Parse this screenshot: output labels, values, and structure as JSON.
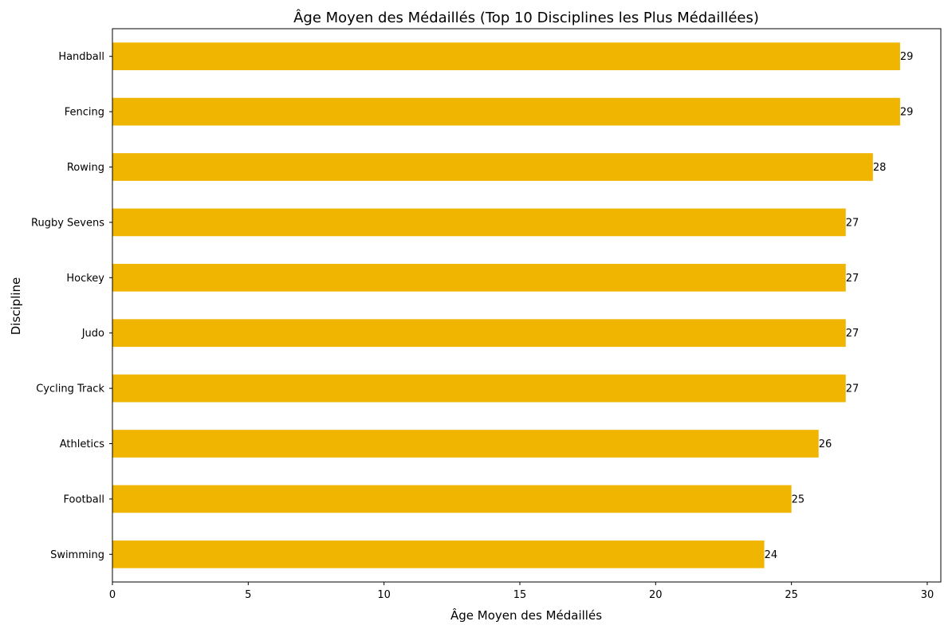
{
  "chart_data": {
    "type": "bar",
    "orientation": "horizontal",
    "title": "Âge Moyen des Médaillés (Top 10 Disciplines les Plus Médaillées)",
    "xlabel": "Âge Moyen des Médaillés",
    "ylabel": "Discipline",
    "categories": [
      "Handball",
      "Fencing",
      "Rowing",
      "Rugby Sevens",
      "Hockey",
      "Judo",
      "Cycling Track",
      "Athletics",
      "Football",
      "Swimming"
    ],
    "values": [
      29,
      29,
      28,
      27,
      27,
      27,
      27,
      26,
      25,
      24
    ],
    "data_labels": [
      "29",
      "29",
      "28",
      "27",
      "27",
      "27",
      "27",
      "26",
      "25",
      "24"
    ],
    "xlim": [
      0,
      30.5
    ],
    "xticks": [
      0,
      5,
      10,
      15,
      20,
      25,
      30
    ],
    "xtick_labels": [
      "0",
      "5",
      "10",
      "15",
      "20",
      "25",
      "30"
    ],
    "grid": false,
    "legend": "none",
    "bar_color": "#f0b500"
  }
}
